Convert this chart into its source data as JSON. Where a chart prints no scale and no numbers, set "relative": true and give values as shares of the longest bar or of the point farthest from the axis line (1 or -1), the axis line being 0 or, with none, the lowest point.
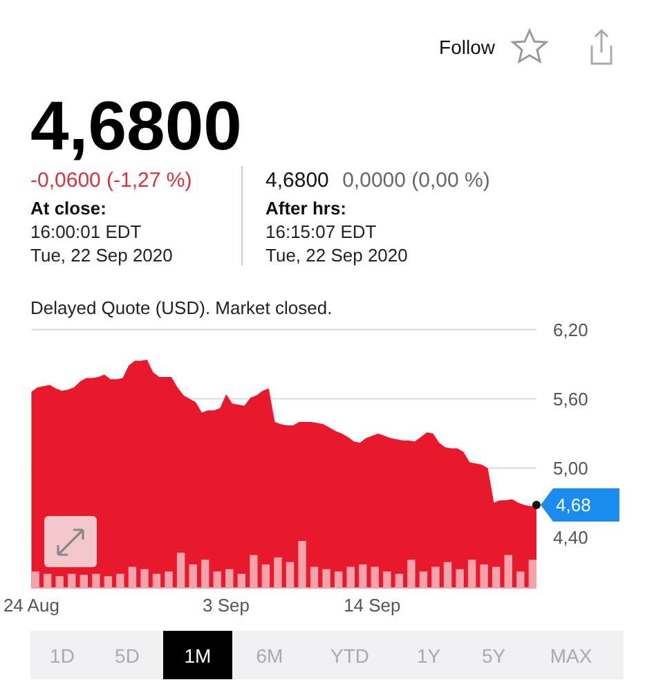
{
  "chart_data": [
    {
      "type": "other",
      "title": "4,6800",
      "subtitle": "-0,0600 (-1,27 %)",
      "annotations": [
        "At close:",
        "16:00:01 EDT",
        "Tue, 22 Sep 2020",
        "4,6800",
        "0,0000 (0,00 %)",
        "After hrs:",
        "16:15:07 EDT",
        "Tue, 22 Sep 2020",
        "Delayed Quote (USD). Market closed.",
        "Follow",
        "1D",
        "5D",
        "1M",
        "6M",
        "YTD",
        "1Y",
        "5Y",
        "MAX"
      ]
    },
    {
      "type": "area",
      "color": "#e8192c",
      "categories": [
        "24 Aug",
        null,
        null,
        null,
        null,
        null,
        null,
        null,
        null,
        null,
        null,
        null,
        null,
        null,
        null,
        null,
        null,
        null,
        null,
        null,
        null,
        null,
        null,
        null,
        null,
        null,
        null,
        null,
        null,
        null,
        null,
        null,
        "3 Sep",
        null,
        null,
        null,
        null,
        null,
        null,
        null,
        null,
        null,
        null,
        null,
        null,
        null,
        null,
        null,
        null,
        null,
        null,
        null,
        null,
        null,
        null,
        null,
        "14 Sep",
        null,
        null,
        null,
        null,
        null,
        null,
        null,
        null,
        null,
        null,
        null,
        null,
        null,
        null,
        null,
        null,
        null,
        null,
        null,
        null,
        null,
        null,
        null,
        null,
        null,
        null,
        null
      ],
      "values": [
        5.66,
        5.7,
        5.71,
        5.72,
        5.69,
        5.67,
        5.68,
        5.7,
        5.75,
        5.78,
        5.78,
        5.79,
        5.81,
        5.77,
        5.77,
        5.78,
        5.89,
        5.93,
        5.93,
        5.94,
        5.83,
        5.79,
        5.79,
        5.79,
        5.7,
        5.63,
        5.6,
        5.57,
        5.48,
        5.5,
        5.5,
        5.52,
        5.64,
        5.56,
        5.55,
        5.54,
        5.61,
        5.63,
        5.67,
        5.69,
        5.4,
        5.38,
        5.37,
        5.37,
        5.4,
        5.4,
        5.4,
        5.39,
        5.38,
        5.35,
        5.32,
        5.3,
        5.27,
        5.23,
        5.22,
        5.26,
        5.28,
        5.3,
        5.28,
        5.26,
        5.25,
        5.24,
        5.24,
        5.23,
        5.27,
        5.31,
        5.3,
        5.22,
        5.18,
        5.17,
        5.17,
        5.14,
        5.05,
        5.04,
        5.03,
        5.0,
        4.7,
        4.72,
        4.72,
        4.73,
        4.7,
        4.68,
        4.67,
        4.68
      ],
      "ylim": [
        3.96,
        6.2
      ],
      "yticks": [
        {
          "value": 6.2,
          "label": "6,20"
        },
        {
          "value": 5.6,
          "label": "5,60"
        },
        {
          "value": 5.0,
          "label": "5,00"
        },
        {
          "value": 4.4,
          "label": "4,40"
        }
      ],
      "grid": "y",
      "annotations": [
        "4,68"
      ]
    },
    {
      "type": "bar",
      "relative": true,
      "color": "#f4a3ab",
      "categories": [
        null,
        null,
        null,
        null,
        null,
        null,
        null,
        null,
        null,
        null,
        null,
        null,
        null,
        null,
        null,
        null,
        null,
        null,
        null,
        null,
        null,
        null,
        null,
        null,
        null,
        null,
        null,
        null,
        null,
        null,
        null,
        null,
        null,
        null,
        null,
        null,
        null,
        null,
        null,
        null,
        null,
        null
      ],
      "values": [
        0.35,
        0.3,
        0.25,
        0.3,
        0.28,
        0.3,
        0.25,
        0.3,
        0.45,
        0.4,
        0.3,
        0.35,
        0.75,
        0.5,
        0.6,
        0.35,
        0.4,
        0.3,
        0.7,
        0.5,
        0.65,
        0.55,
        1,
        0.45,
        0.4,
        0.35,
        0.45,
        0.5,
        0.45,
        0.35,
        0.3,
        0.6,
        0.35,
        0.45,
        0.55,
        0.4,
        0.6,
        0.5,
        0.45,
        0.7,
        0.35,
        0.6
      ]
    }
  ]
}
